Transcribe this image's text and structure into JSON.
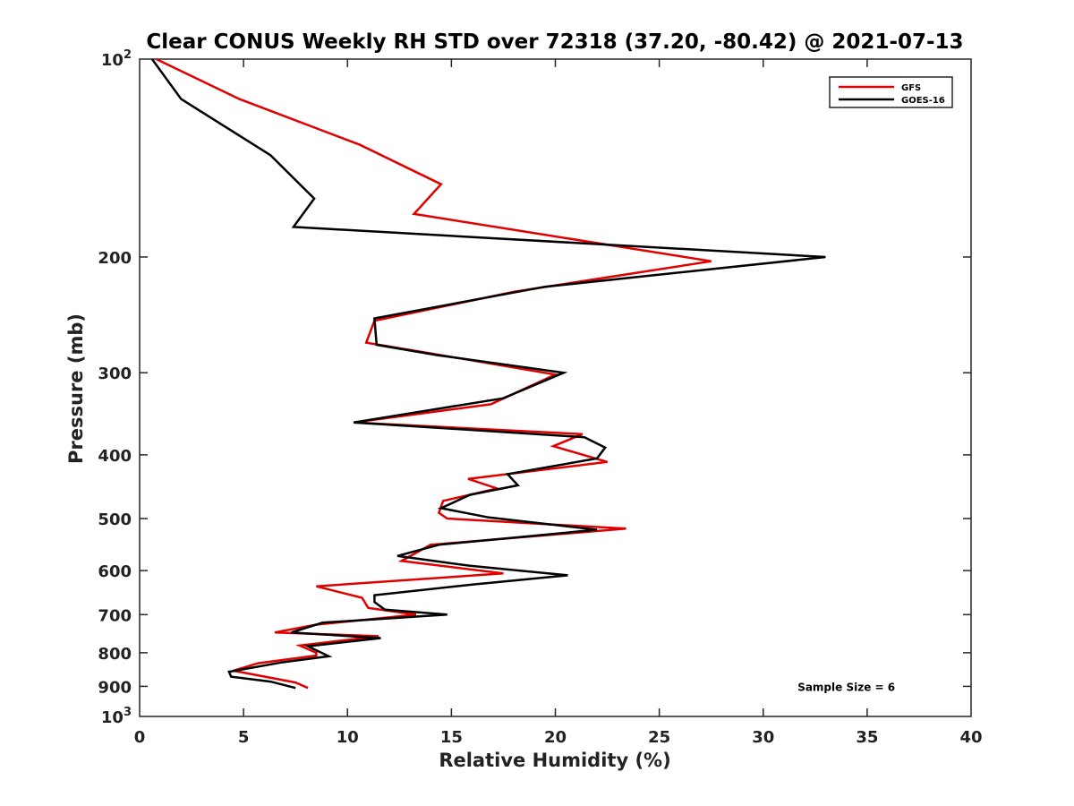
{
  "chart_data": {
    "type": "line",
    "title": "Clear CONUS Weekly RH STD over 72318 (37.20, -80.42) @ 2021-07-13",
    "xlabel": "Relative Humidity (%)",
    "ylabel": "Pressure (mb)",
    "xlim": [
      0,
      40
    ],
    "ylim": [
      100,
      1000
    ],
    "yscale": "log",
    "y_reversed": true,
    "grid": false,
    "legend_position": "top-right",
    "x_ticks": [
      "0",
      "5",
      "10",
      "15",
      "20",
      "25",
      "30",
      "35",
      "40"
    ],
    "y_ticks": [
      {
        "value": 100,
        "base": "10",
        "exp": "2"
      },
      {
        "value": 200,
        "label": "200"
      },
      {
        "value": 300,
        "label": "300"
      },
      {
        "value": 400,
        "label": "400"
      },
      {
        "value": 500,
        "label": "500"
      },
      {
        "value": 600,
        "label": "600"
      },
      {
        "value": 700,
        "label": "700"
      },
      {
        "value": 800,
        "label": "800"
      },
      {
        "value": 900,
        "label": "900"
      },
      {
        "value": 1000,
        "base": "10",
        "exp": "3"
      }
    ],
    "series": [
      {
        "name": "GFS",
        "color": "#e00000",
        "x": [
          0.8,
          4.8,
          10.6,
          14.5,
          13.2,
          27.5,
          18.0,
          11.3,
          10.9,
          13.9,
          20.0,
          16.9,
          10.3,
          21.3,
          19.9,
          22.5,
          15.8,
          17.2,
          14.6,
          14.4,
          14.8,
          23.4,
          14.0,
          12.6,
          17.5,
          8.5,
          10.7,
          11.0,
          13.3,
          8.5,
          6.5,
          11.5,
          7.7,
          8.5,
          8.5,
          5.7,
          4.5,
          7.5,
          8.1
        ],
        "y": [
          100,
          115,
          135,
          155,
          172,
          203,
          226,
          250,
          270,
          280,
          302,
          335,
          357,
          372,
          388,
          410,
          435,
          450,
          470,
          490,
          500,
          518,
          548,
          580,
          606,
          634,
          660,
          684,
          700,
          725,
          745,
          755,
          780,
          800,
          808,
          830,
          852,
          888,
          905
        ]
      },
      {
        "name": "GOES-16",
        "color": "#000000",
        "x": [
          0.6,
          2.0,
          6.3,
          8.4,
          7.4,
          33.0,
          19.5,
          11.3,
          11.4,
          14.3,
          20.4,
          17.5,
          10.3,
          21.4,
          22.4,
          22.0,
          17.7,
          18.2,
          15.9,
          14.5,
          16.8,
          22.0,
          14.4,
          12.4,
          15.9,
          20.6,
          16.0,
          11.3,
          11.3,
          11.8,
          14.8,
          8.8,
          7.3,
          11.6,
          8.1,
          9.1,
          6.8,
          4.3,
          4.4,
          6.3,
          7.5
        ],
        "y": [
          100,
          115,
          140,
          163,
          180,
          200,
          222,
          248,
          272,
          282,
          300,
          328,
          357,
          376,
          390,
          405,
          428,
          445,
          460,
          482,
          498,
          520,
          548,
          570,
          590,
          610,
          630,
          654,
          670,
          688,
          700,
          720,
          745,
          760,
          782,
          810,
          828,
          855,
          870,
          885,
          905
        ]
      }
    ],
    "annotations": [
      {
        "text": "Sample Size = 6",
        "x": 34,
        "y": 900
      }
    ]
  }
}
